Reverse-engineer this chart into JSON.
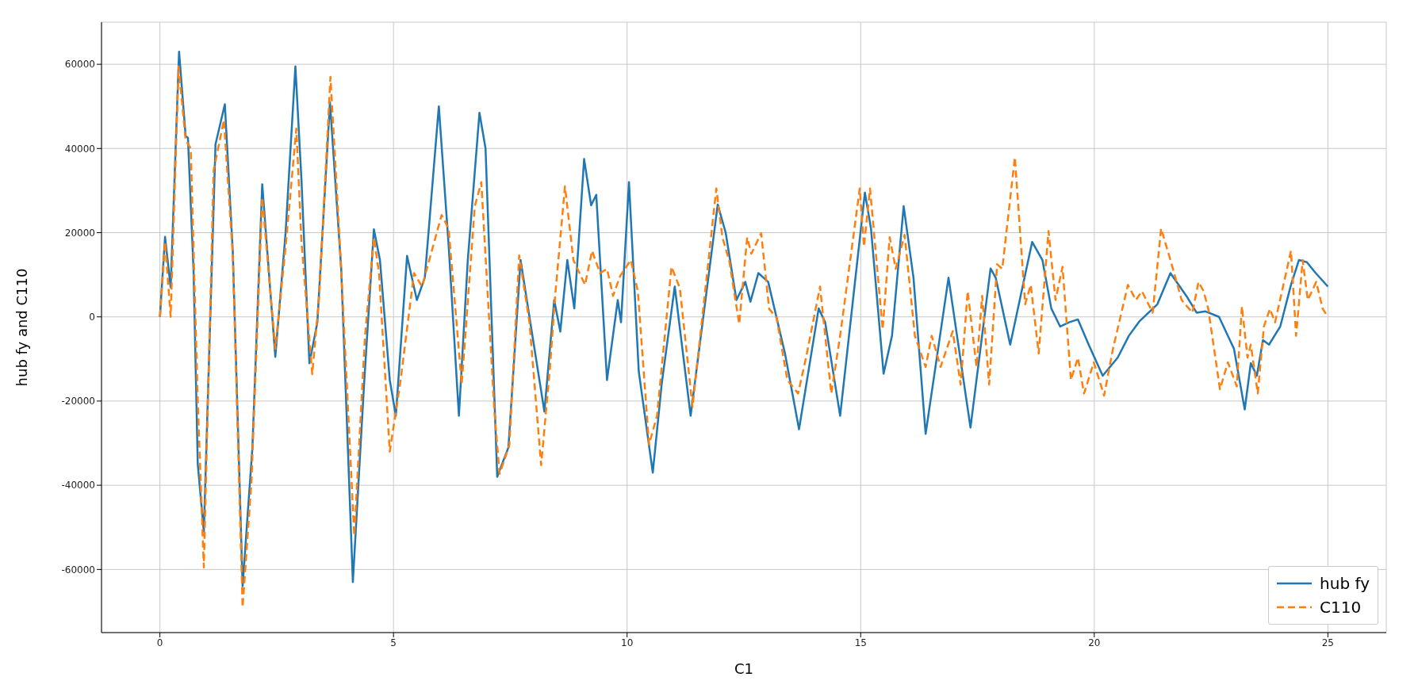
{
  "chart_data": {
    "type": "line",
    "xlabel": "C1",
    "ylabel": "hub fy and C110",
    "xlim": [
      -1.25,
      26.25
    ],
    "ylim": [
      -75000,
      70000
    ],
    "xticks": [
      0,
      5,
      10,
      15,
      20,
      25
    ],
    "yticks": [
      -60000,
      -40000,
      -20000,
      0,
      20000,
      40000,
      60000
    ],
    "grid": true,
    "legend": "bottom right",
    "marker": "none",
    "series": [
      {
        "name": "hub fy",
        "color": "#1f77b4",
        "line_style": "solid",
        "x": [
          0,
          0.11,
          0.23,
          0.41,
          0.55,
          0.6,
          0.72,
          0.81,
          0.94,
          1.19,
          1.39,
          1.56,
          1.77,
          1.98,
          2.19,
          2.47,
          2.69,
          2.9,
          3.03,
          3.2,
          3.37,
          3.64,
          3.88,
          4.13,
          4.37,
          4.58,
          4.71,
          4.92,
          5.05,
          5.29,
          5.5,
          5.67,
          5.97,
          6.18,
          6.4,
          6.59,
          6.84,
          6.97,
          7.22,
          7.46,
          7.72,
          7.91,
          8.23,
          8.44,
          8.57,
          8.72,
          8.87,
          9.08,
          9.23,
          9.34,
          9.57,
          9.8,
          9.87,
          10.04,
          10.25,
          10.55,
          10.74,
          11.02,
          11.36,
          11.94,
          12.11,
          12.34,
          12.53,
          12.64,
          12.81,
          13.02,
          13.38,
          13.68,
          14.1,
          14.24,
          14.56,
          15.09,
          15.22,
          15.49,
          15.67,
          15.92,
          16.13,
          16.39,
          16.88,
          17.35,
          17.78,
          17.89,
          18.2,
          18.67,
          18.89,
          19.08,
          19.27,
          19.46,
          19.65,
          19.88,
          20.18,
          20.5,
          20.74,
          20.97,
          21.35,
          21.63,
          21.97,
          22.19,
          22.38,
          22.67,
          22.99,
          23.22,
          23.35,
          23.48,
          23.61,
          23.74,
          23.98,
          24.21,
          24.38,
          24.55,
          24.74,
          25
        ],
        "values": [
          0,
          19000,
          7000,
          63000,
          43000,
          42500,
          11000,
          -35000,
          -51000,
          41000,
          50500,
          15500,
          -64000,
          -31000,
          31500,
          -9500,
          20000,
          59500,
          32500,
          -11000,
          -1300,
          51000,
          11500,
          -63000,
          -16000,
          20800,
          13500,
          -15000,
          -23500,
          14500,
          4000,
          9300,
          50000,
          17000,
          -23500,
          13500,
          48500,
          40000,
          -38000,
          -31000,
          13500,
          0,
          -22500,
          4000,
          -3500,
          13500,
          2000,
          37500,
          26500,
          29000,
          -15000,
          4000,
          -1300,
          32000,
          -13000,
          -37000,
          -16000,
          7200,
          -23500,
          26700,
          20000,
          4000,
          8300,
          3600,
          10400,
          8300,
          -8700,
          -26700,
          2000,
          -1300,
          -23500,
          29500,
          21000,
          -13500,
          -4500,
          26300,
          9300,
          -27800,
          9300,
          -26300,
          11500,
          9300,
          -6600,
          17800,
          13500,
          2000,
          -2300,
          -1300,
          -600,
          -6600,
          -14000,
          -9700,
          -4500,
          -1000,
          3000,
          10400,
          5000,
          1000,
          1300,
          0,
          -7600,
          -22000,
          -11000,
          -14000,
          -5500,
          -6600,
          -2300,
          7600,
          13500,
          13000,
          10400,
          7200
        ]
      },
      {
        "name": "C110",
        "color": "#ff7f0e",
        "line_style": "dashed",
        "x": [
          0,
          0.11,
          0.23,
          0.4,
          0.55,
          0.66,
          0.81,
          0.94,
          1.15,
          1.37,
          1.56,
          1.77,
          1.96,
          2.19,
          2.47,
          2.69,
          2.92,
          3.03,
          3.26,
          3.41,
          3.65,
          3.86,
          4.16,
          4.39,
          4.58,
          4.69,
          4.92,
          5.14,
          5.44,
          5.61,
          6.03,
          6.18,
          6.46,
          6.74,
          6.88,
          7.16,
          7.27,
          7.48,
          7.69,
          7.91,
          8.16,
          8.35,
          8.46,
          8.67,
          8.85,
          9.1,
          9.25,
          9.42,
          9.57,
          9.7,
          9.85,
          10.08,
          10.23,
          10.47,
          10.64,
          10.95,
          11.13,
          11.4,
          11.91,
          12.04,
          12.19,
          12.4,
          12.57,
          12.66,
          12.87,
          13.04,
          13.2,
          13.43,
          13.66,
          13.83,
          14.13,
          14.37,
          14.56,
          14.98,
          15.07,
          15.2,
          15.47,
          15.62,
          15.75,
          15.94,
          16.16,
          16.39,
          16.52,
          16.71,
          16.97,
          17.14,
          17.29,
          17.48,
          17.6,
          17.75,
          17.92,
          18.03,
          18.3,
          18.52,
          18.64,
          18.81,
          19.02,
          19.17,
          19.32,
          19.5,
          19.65,
          19.78,
          19.99,
          20.21,
          20.4,
          20.72,
          20.89,
          21.02,
          21.25,
          21.43,
          21.63,
          21.87,
          22.1,
          22.23,
          22.34,
          22.44,
          22.69,
          22.86,
          23.05,
          23.16,
          23.28,
          23.35,
          23.5,
          23.63,
          23.76,
          23.87,
          24.21,
          24.32,
          24.46,
          24.57,
          24.75,
          24.89,
          25
        ],
        "values": [
          0,
          17800,
          0,
          59500,
          42000,
          40000,
          -20000,
          -59500,
          34800,
          46800,
          14600,
          -69000,
          -39000,
          28400,
          -7600,
          16700,
          44700,
          17800,
          -13600,
          5000,
          57000,
          15700,
          -52000,
          -4500,
          18800,
          10400,
          -32000,
          -16000,
          10400,
          7200,
          24200,
          21000,
          -16000,
          26300,
          32000,
          -22500,
          -37300,
          -30500,
          14600,
          -1300,
          -35200,
          -11900,
          5000,
          31000,
          13500,
          7600,
          15700,
          10400,
          11400,
          5000,
          9700,
          13500,
          6100,
          -30300,
          -23500,
          11900,
          6800,
          -21400,
          30500,
          18900,
          13100,
          -1700,
          18900,
          15000,
          19900,
          1900,
          -200,
          -15000,
          -18200,
          -9700,
          7200,
          -18200,
          -4500,
          30500,
          16700,
          30500,
          -3000,
          18900,
          11400,
          19500,
          -4500,
          -11900,
          -4500,
          -11900,
          -3400,
          -16100,
          6100,
          -11900,
          5000,
          -16100,
          12500,
          11400,
          37900,
          3000,
          7600,
          -8700,
          20400,
          4000,
          11900,
          -15000,
          -9700,
          -18200,
          -10800,
          -18700,
          -7600,
          7600,
          4000,
          6100,
          1000,
          21000,
          13500,
          4000,
          1000,
          8300,
          6100,
          1900,
          -17200,
          -10800,
          -16500,
          2500,
          -9700,
          -6600,
          -18200,
          -2300,
          1900,
          -1300,
          15700,
          -4500,
          13500,
          4000,
          8300,
          1900,
          0
        ]
      }
    ]
  }
}
